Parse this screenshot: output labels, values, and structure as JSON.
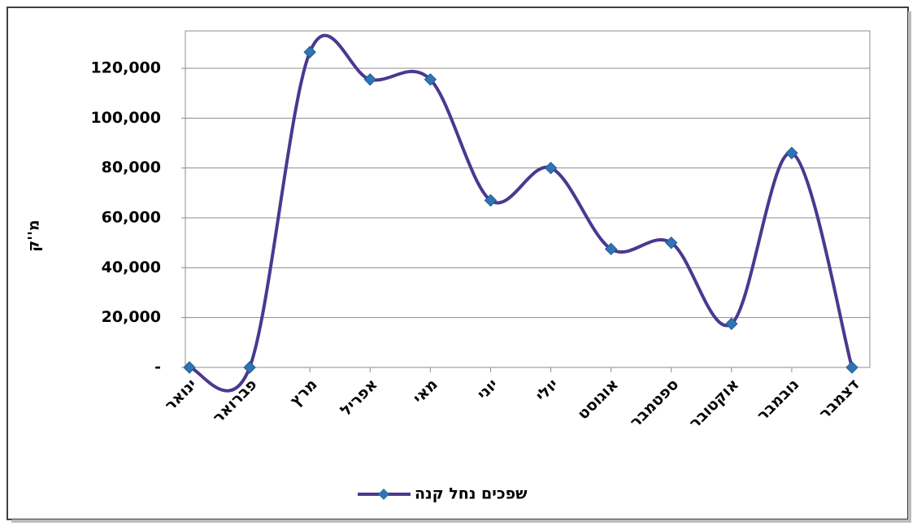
{
  "chart_data": {
    "type": "line",
    "y_label": "מ''ק",
    "categories": [
      "ינואר",
      "פברואר",
      "מרץ",
      "אפריל",
      "מאי",
      "יוני",
      "יולי",
      "אוגוסט",
      "ספטמבר",
      "אוקטובר",
      "נובמבר",
      "דצמבר"
    ],
    "series": [
      {
        "name": "שפכים נחל קנה",
        "color": "#4b3890",
        "marker_color": "#2e75b6",
        "values": [
          0,
          0,
          126500,
          115500,
          115500,
          67000,
          80000,
          47500,
          50000,
          17500,
          86000,
          0
        ]
      }
    ],
    "ylim": [
      0,
      135000
    ],
    "yticks": [
      {
        "value": 0,
        "label": "-"
      },
      {
        "value": 20000,
        "label": "20,000"
      },
      {
        "value": 40000,
        "label": "40,000"
      },
      {
        "value": 60000,
        "label": "60,000"
      },
      {
        "value": 80000,
        "label": "80,000"
      },
      {
        "value": 100000,
        "label": "100,000"
      },
      {
        "value": 120000,
        "label": "120,000"
      }
    ],
    "grid": true,
    "smooth": true,
    "legend": "bottom"
  }
}
